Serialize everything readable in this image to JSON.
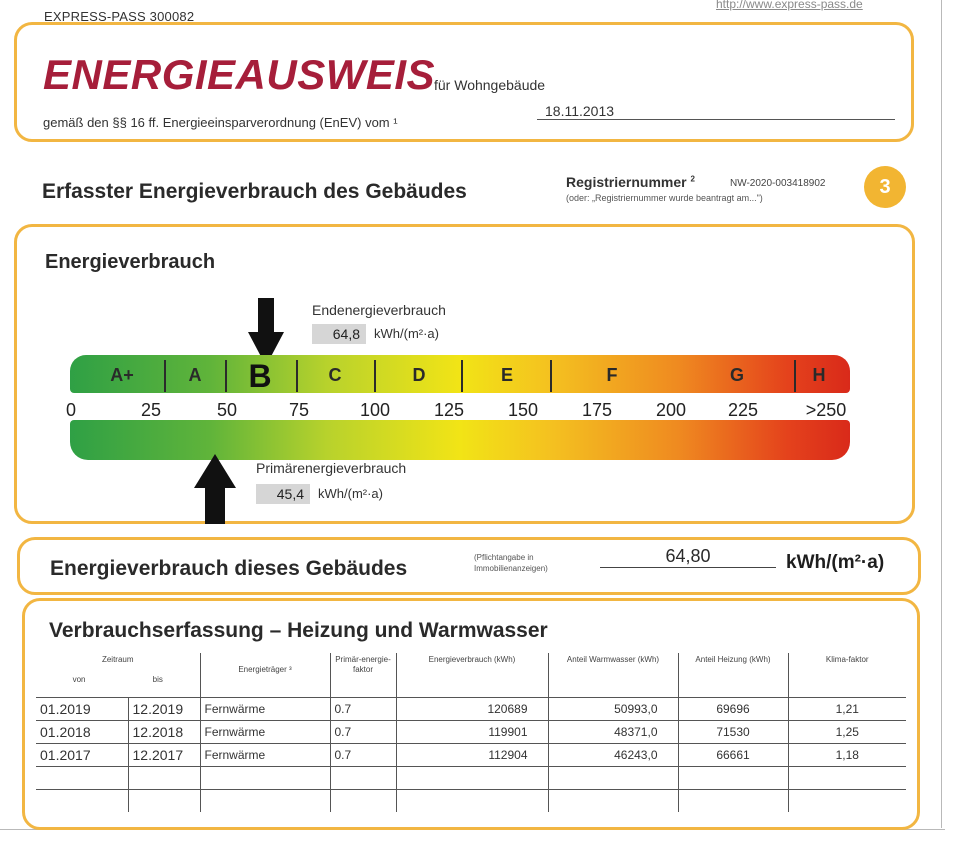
{
  "header": {
    "pass_id": "EXPRESS-PASS 300082",
    "url": "http://www.express-pass.de"
  },
  "title": {
    "main": "ENERGIEAUSWEIS",
    "sub": "für Wohngebäude",
    "law": "gemäß den §§ 16 ff. Energieeinsparverordnung (EnEV) vom ¹",
    "date": "18.11.2013"
  },
  "section": {
    "heading": "Erfasster Energieverbrauch des Gebäudes",
    "reg_label": "Registriernummer",
    "reg_sup": "2",
    "reg_number": "NW-2020-003418902",
    "reg_note": "(oder: „Registriernummer wurde beantragt am...\")",
    "page_number": "3"
  },
  "verbrauch": {
    "title": "Energieverbrauch",
    "end_label": "Endenergieverbrauch",
    "end_value": "64,8",
    "end_unit": "kWh/(m²·a)",
    "prim_label": "Primärenergieverbrauch",
    "prim_value": "45,4",
    "prim_unit": "kWh/(m²·a)",
    "classes": [
      "A+",
      "A",
      "B",
      "C",
      "D",
      "E",
      "F",
      "G",
      "H"
    ],
    "active_class": "B",
    "ticks": [
      "0",
      "25",
      "50",
      "75",
      "100",
      "125",
      "150",
      "175",
      "200",
      "225",
      ">250"
    ],
    "end_energy_value": 64.8,
    "primary_energy_value": 45.4,
    "colors": {
      "low": "#2fa045",
      "mid": "#f2e416",
      "high": "#d92a1a",
      "frame": "#f2b642"
    }
  },
  "gebaeude": {
    "title": "Energieverbrauch dieses Gebäudes",
    "note": "(Pflichtangabe in Immobilienanzeigen)",
    "value": "64,80",
    "unit": "kWh/(m²·a)"
  },
  "erfassung": {
    "title": "Verbrauchserfassung – Heizung und Warmwasser",
    "headers": {
      "zeitraum": "Zeitraum",
      "von": "von",
      "bis": "bis",
      "traeger": "Energieträger ³",
      "faktor": "Primär-energie-faktor",
      "verbrauch": "Energieverbrauch (kWh)",
      "warmwasser": "Anteil Warmwasser (kWh)",
      "heizung": "Anteil Heizung (kWh)",
      "klima": "Klima-faktor"
    },
    "rows": [
      {
        "von": "01.2019",
        "bis": "12.2019",
        "traeger": "Fernwärme",
        "faktor": "0.7",
        "verbrauch": "120689",
        "warmwasser": "50993,0",
        "heizung": "69696",
        "klima": "1,21"
      },
      {
        "von": "01.2018",
        "bis": "12.2018",
        "traeger": "Fernwärme",
        "faktor": "0.7",
        "verbrauch": "119901",
        "warmwasser": "48371,0",
        "heizung": "71530",
        "klima": "1,25"
      },
      {
        "von": "01.2017",
        "bis": "12.2017",
        "traeger": "Fernwärme",
        "faktor": "0.7",
        "verbrauch": "112904",
        "warmwasser": "46243,0",
        "heizung": "66661",
        "klima": "1,18"
      }
    ]
  }
}
